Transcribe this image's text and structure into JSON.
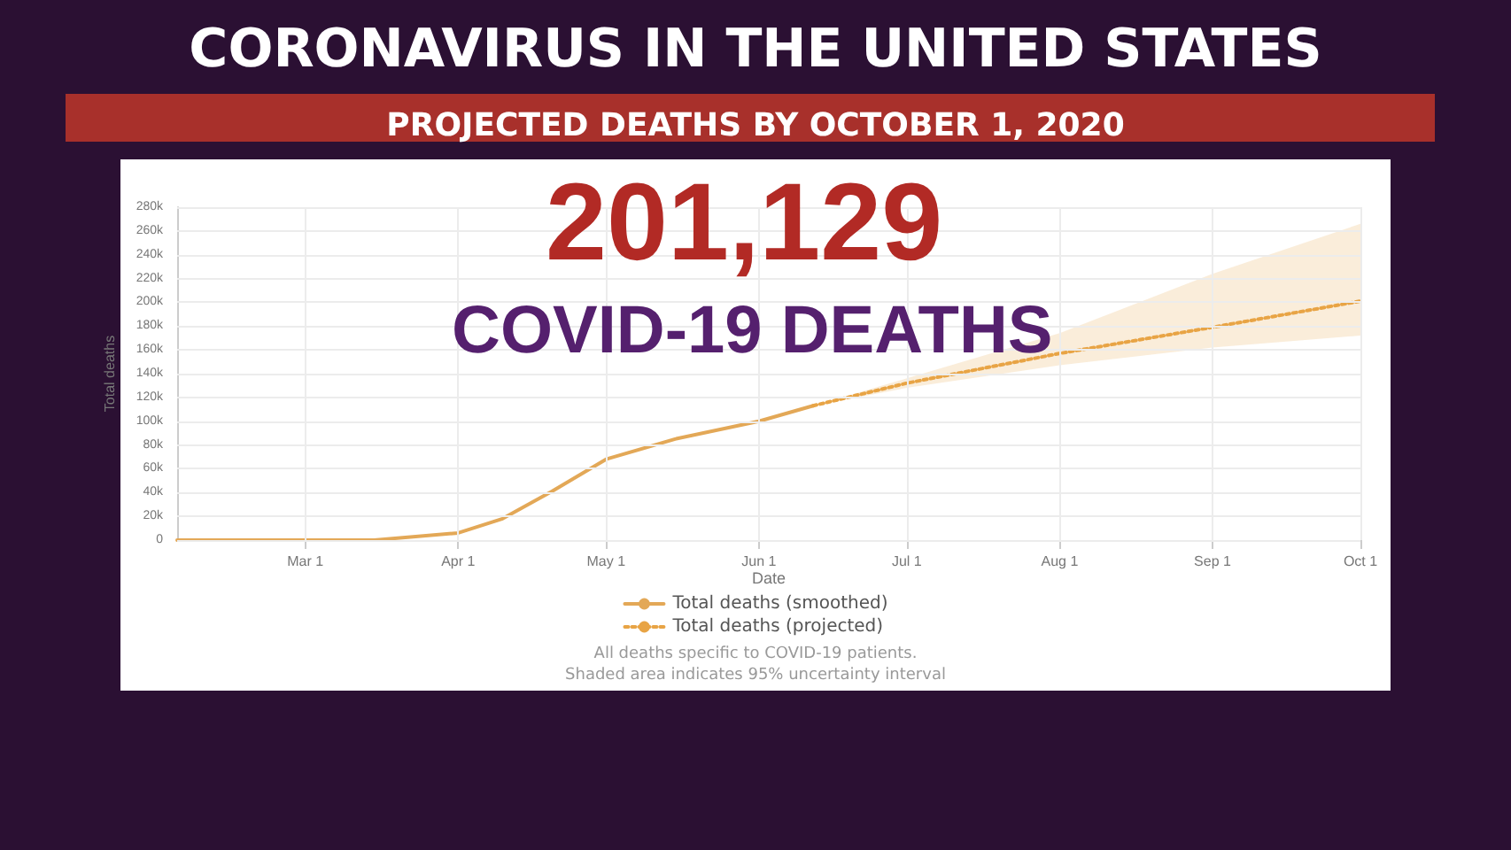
{
  "chart_data": {
    "type": "line",
    "title": "CORONAVIRUS IN THE UNITED STATES",
    "subtitle": "PROJECTED DEATHS BY OCTOBER 1, 2020",
    "xlabel": "Date",
    "ylabel": "Total deaths",
    "annotations": [
      "201,129",
      "COVID-19 DEATHS",
      "All deaths specific to COVID-19 patients.",
      "Shaded area indicates 95% uncertainty interval"
    ],
    "series": [
      {
        "name": "Total deaths (smoothed)",
        "color": "#e3a857",
        "line_style": "solid",
        "x": [
          "2020-02-04",
          "2020-03-01",
          "2020-03-15",
          "2020-04-01",
          "2020-04-10",
          "2020-04-20",
          "2020-05-01",
          "2020-05-15",
          "2020-06-01",
          "2020-06-12"
        ],
        "values": [
          0,
          0,
          0,
          6000,
          18000,
          41000,
          68000,
          85000,
          100000,
          113000
        ]
      },
      {
        "name": "Total deaths (projected)",
        "color": "#e8a445",
        "line_style": "dotted",
        "x": [
          "2020-06-12",
          "2020-07-01",
          "2020-08-01",
          "2020-09-01",
          "2020-10-01"
        ],
        "values": [
          113000,
          132000,
          157000,
          179000,
          201000
        ],
        "lower": [
          113000,
          128000,
          147000,
          162000,
          172000
        ],
        "upper": [
          113000,
          136000,
          174000,
          224000,
          266000
        ]
      }
    ],
    "xlim": [
      "2020-02-04",
      "2020-10-01"
    ],
    "xticks": [
      {
        "value": "2020-03-01",
        "label": "Mar 1"
      },
      {
        "value": "2020-04-01",
        "label": "Apr 1"
      },
      {
        "value": "2020-05-01",
        "label": "May 1"
      },
      {
        "value": "2020-06-01",
        "label": "Jun 1"
      },
      {
        "value": "2020-07-01",
        "label": "Jul 1"
      },
      {
        "value": "2020-08-01",
        "label": "Aug 1"
      },
      {
        "value": "2020-09-01",
        "label": "Sep 1"
      },
      {
        "value": "2020-10-01",
        "label": "Oct 1"
      }
    ],
    "ylim": [
      0,
      280000
    ],
    "yticks": [
      0,
      {
        "value": 20000,
        "label": "20k"
      },
      {
        "value": 40000,
        "label": "40k"
      },
      {
        "value": 60000,
        "label": "60k"
      },
      {
        "value": 80000,
        "label": "80k"
      },
      {
        "value": 100000,
        "label": "100k"
      },
      {
        "value": 120000,
        "label": "120k"
      },
      {
        "value": 140000,
        "label": "140k"
      },
      {
        "value": 160000,
        "label": "160k"
      },
      {
        "value": 180000,
        "label": "180k"
      },
      {
        "value": 200000,
        "label": "200k"
      },
      {
        "value": 220000,
        "label": "220k"
      },
      {
        "value": 240000,
        "label": "240k"
      },
      {
        "value": 260000,
        "label": "260k"
      },
      {
        "value": 280000,
        "label": "280k"
      }
    ],
    "grid": true,
    "legend": "bottom",
    "marker": "none"
  }
}
